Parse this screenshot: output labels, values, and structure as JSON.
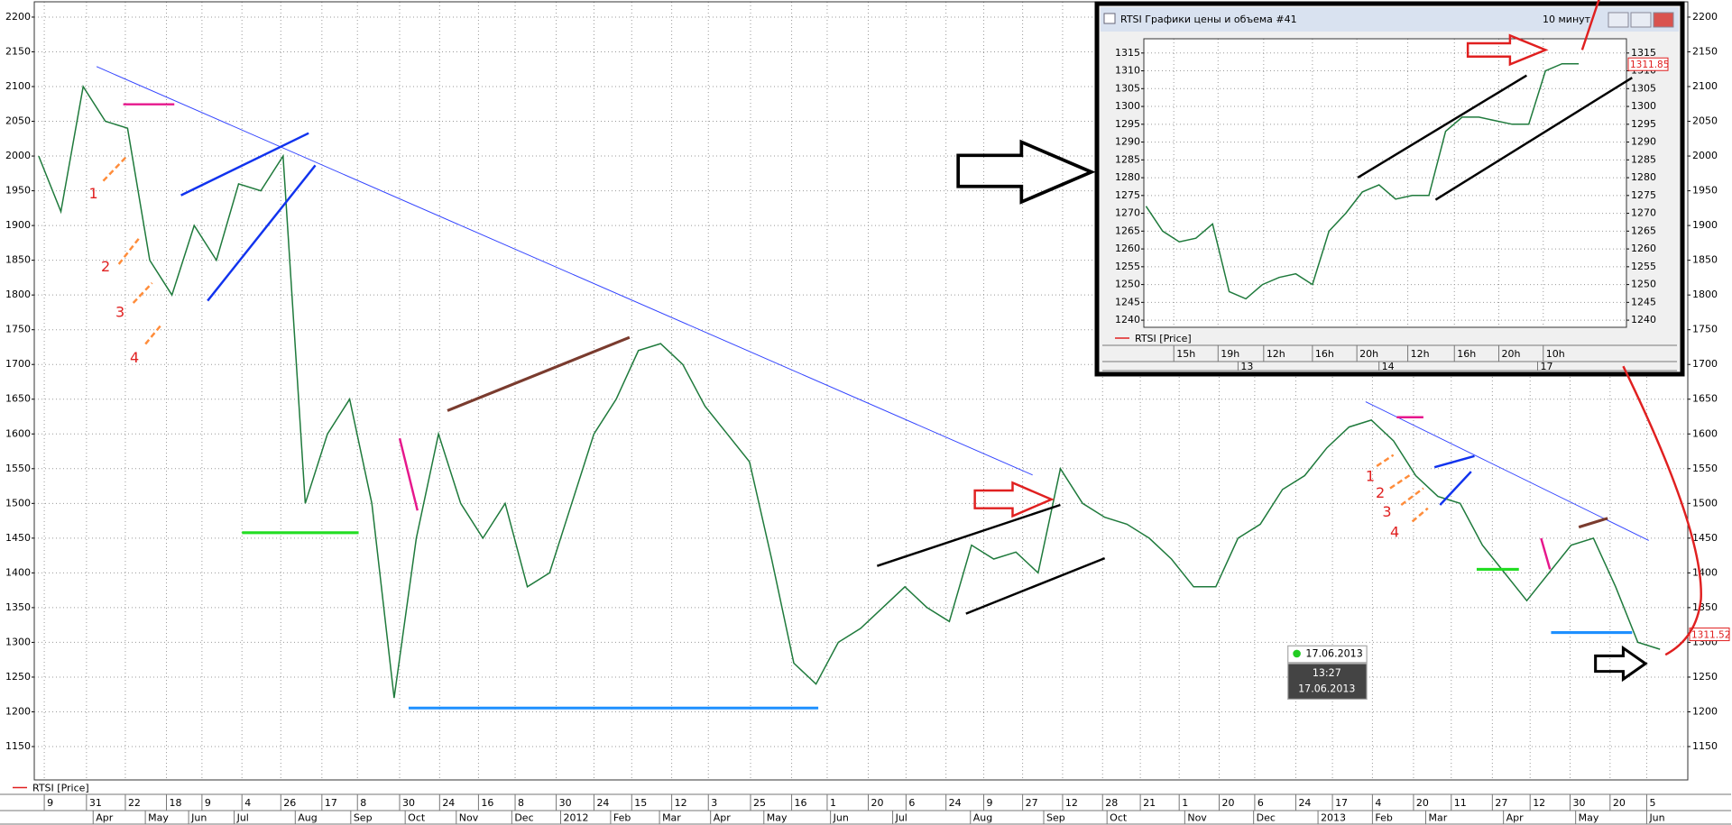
{
  "chart_data": [
    {
      "type": "line",
      "series": [
        {
          "name": "RTSI [Price]",
          "color": "#1f7a3c",
          "values": [
            2000,
            1920,
            2100,
            2050,
            2040,
            1850,
            1800,
            1900,
            1850,
            1960,
            1950,
            2000,
            1500,
            1600,
            1650,
            1500,
            1220,
            1450,
            1600,
            1500,
            1450,
            1500,
            1380,
            1400,
            1500,
            1600,
            1650,
            1720,
            1730,
            1700,
            1640,
            1600,
            1560,
            1420,
            1270,
            1240,
            1300,
            1320,
            1350,
            1380,
            1350,
            1330,
            1440,
            1420,
            1430,
            1400,
            1550,
            1500,
            1480,
            1470,
            1450,
            1420,
            1380,
            1380,
            1450,
            1470,
            1520,
            1540,
            1580,
            1610,
            1620,
            1590,
            1540,
            1510,
            1500,
            1440,
            1400,
            1360,
            1400,
            1440,
            1450,
            1380,
            1300,
            1290
          ]
        }
      ],
      "ylim": [
        1102,
        2222
      ],
      "yticks": [
        1150,
        1200,
        1250,
        1300,
        1350,
        1400,
        1450,
        1500,
        1550,
        1600,
        1650,
        1700,
        1750,
        1800,
        1850,
        1900,
        1950,
        2000,
        2050,
        2100,
        2150,
        2200
      ],
      "xlim": [
        -0.2,
        74.25
      ],
      "xticks": [
        {
          "value": 0.25,
          "label": "9"
        },
        {
          "value": 2.15,
          "label": "31"
        },
        {
          "value": 3.9,
          "label": "22"
        },
        {
          "value": 5.75,
          "label": "18"
        },
        {
          "value": 7.35,
          "label": "9"
        },
        {
          "value": 9.15,
          "label": "4"
        },
        {
          "value": 10.9,
          "label": "26"
        },
        {
          "value": 12.75,
          "label": "17"
        },
        {
          "value": 14.35,
          "label": "8"
        },
        {
          "value": 16.25,
          "label": "30"
        },
        {
          "value": 18.05,
          "label": "24"
        },
        {
          "value": 19.8,
          "label": "16"
        },
        {
          "value": 21.45,
          "label": "8"
        },
        {
          "value": 23.3,
          "label": "30"
        },
        {
          "value": 25,
          "label": "24"
        },
        {
          "value": 26.7,
          "label": "15"
        },
        {
          "value": 28.5,
          "label": "12"
        },
        {
          "value": 30.15,
          "label": "3"
        },
        {
          "value": 32.05,
          "label": "25"
        },
        {
          "value": 33.9,
          "label": "16"
        },
        {
          "value": 35.5,
          "label": "1"
        },
        {
          "value": 37.35,
          "label": "20"
        },
        {
          "value": 39.05,
          "label": "6"
        },
        {
          "value": 40.85,
          "label": "24"
        },
        {
          "value": 42.55,
          "label": "9"
        },
        {
          "value": 44.3,
          "label": "27"
        },
        {
          "value": 46.1,
          "label": "12"
        },
        {
          "value": 47.9,
          "label": "28"
        },
        {
          "value": 49.6,
          "label": "21"
        },
        {
          "value": 51.35,
          "label": "1"
        },
        {
          "value": 53.15,
          "label": "20"
        },
        {
          "value": 54.75,
          "label": "6"
        },
        {
          "value": 56.6,
          "label": "24"
        },
        {
          "value": 58.25,
          "label": "17"
        },
        {
          "value": 60.05,
          "label": "4"
        },
        {
          "value": 61.9,
          "label": "20"
        },
        {
          "value": 63.6,
          "label": "11"
        },
        {
          "value": 65.45,
          "label": "27"
        },
        {
          "value": 67.15,
          "label": "12"
        },
        {
          "value": 68.95,
          "label": "30"
        },
        {
          "value": 70.75,
          "label": "20"
        },
        {
          "value": 72.4,
          "label": "5"
        }
      ],
      "month_ticks": [
        {
          "value": 2.45,
          "label": "Apr"
        },
        {
          "value": 4.8,
          "label": "May"
        },
        {
          "value": 6.75,
          "label": "Jun"
        },
        {
          "value": 8.8,
          "label": "Jul"
        },
        {
          "value": 11.55,
          "label": "Aug"
        },
        {
          "value": 14.05,
          "label": "Sep"
        },
        {
          "value": 16.5,
          "label": "Oct"
        },
        {
          "value": 18.8,
          "label": "Nov"
        },
        {
          "value": 21.3,
          "label": "Dec"
        },
        {
          "value": 23.5,
          "label": "2012"
        },
        {
          "value": 25.75,
          "label": "Feb"
        },
        {
          "value": 27.95,
          "label": "Mar"
        },
        {
          "value": 30.25,
          "label": "Apr"
        },
        {
          "value": 32.65,
          "label": "May"
        },
        {
          "value": 35.65,
          "label": "Jun"
        },
        {
          "value": 38.45,
          "label": "Jul"
        },
        {
          "value": 41.95,
          "label": "Aug"
        },
        {
          "value": 45.25,
          "label": "Sep"
        },
        {
          "value": 48.1,
          "label": "Oct"
        },
        {
          "value": 51.6,
          "label": "Nov"
        },
        {
          "value": 54.7,
          "label": "Dec"
        },
        {
          "value": 57.6,
          "label": "2013"
        },
        {
          "value": 60.05,
          "label": "Feb"
        },
        {
          "value": 62.45,
          "label": "Mar"
        },
        {
          "value": 65.95,
          "label": "Apr"
        },
        {
          "value": 69.2,
          "label": "May"
        },
        {
          "value": 72.4,
          "label": "Jun"
        }
      ],
      "grid": true,
      "last_price": 1311.52,
      "wave_labels_left": [
        "1",
        "2",
        "3",
        "4"
      ],
      "wave_labels_right": [
        "1",
        "2",
        "3",
        "4"
      ],
      "cursor": {
        "date": "17.06.2013",
        "time": "13:27",
        "date_full": "17.06.2013"
      }
    },
    {
      "type": "line",
      "title": "RTSI Графики цены и объема #41",
      "timeframe": "10 минут",
      "series": [
        {
          "name": "RTSI [Price]",
          "color": "#1f7a3c",
          "values": [
            1272,
            1265,
            1262,
            1263,
            1267,
            1248,
            1246,
            1250,
            1252,
            1253,
            1250,
            1265,
            1270,
            1276,
            1278,
            1274,
            1275,
            1275,
            1293,
            1297,
            1297,
            1296,
            1295,
            1295,
            1310,
            1312,
            1312
          ]
        }
      ],
      "ylim": [
        1238,
        1319
      ],
      "yticks": [
        1240,
        1245,
        1250,
        1255,
        1260,
        1265,
        1270,
        1275,
        1280,
        1285,
        1290,
        1295,
        1300,
        1305,
        1310,
        1315
      ],
      "xlim": [
        -0.13,
        28.87
      ],
      "xticks": [
        {
          "value": 1.67,
          "label": "15h"
        },
        {
          "value": 4.33,
          "label": "19h"
        },
        {
          "value": 7.07,
          "label": "12h"
        },
        {
          "value": 10,
          "label": "16h"
        },
        {
          "value": 12.67,
          "label": "20h"
        },
        {
          "value": 15.73,
          "label": "12h"
        },
        {
          "value": 18.53,
          "label": "16h"
        },
        {
          "value": 21.2,
          "label": "20h"
        },
        {
          "value": 23.87,
          "label": "10h"
        }
      ],
      "month_ticks": [
        {
          "value": 5.53,
          "label": "13"
        },
        {
          "value": 14,
          "label": "14"
        },
        {
          "value": 23.53,
          "label": "17"
        }
      ],
      "grid": true,
      "last_price": 1311.85
    }
  ]
}
